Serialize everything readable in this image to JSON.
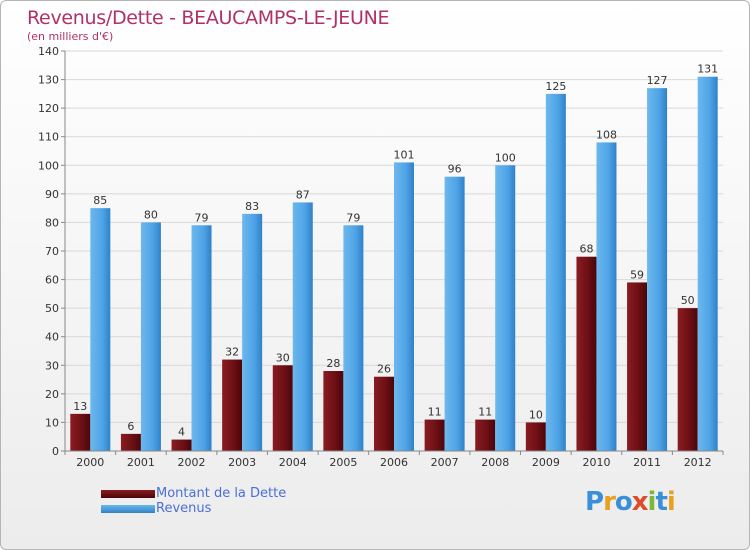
{
  "header": {
    "title": "Revenus/Dette - BEAUCAMPS-LE-JEUNE",
    "subtitle": "(en milliers d'€)"
  },
  "legend": {
    "items": [
      {
        "label": "Montant de la Dette",
        "color": "#6b0f14"
      },
      {
        "label": "Revenus",
        "color": "#4fa3e6"
      }
    ]
  },
  "logo": {
    "text": "Proxiti"
  },
  "chart_data": {
    "type": "bar",
    "title": "Revenus/Dette - BEAUCAMPS-LE-JEUNE",
    "subtitle": "(en milliers d'€)",
    "xlabel": "",
    "ylabel": "",
    "ylim": [
      0,
      140
    ],
    "yticks": [
      0,
      10,
      20,
      30,
      40,
      50,
      60,
      70,
      80,
      90,
      100,
      110,
      120,
      130,
      140
    ],
    "grid": true,
    "legend_position": "bottom-left",
    "categories": [
      "2000",
      "2001",
      "2002",
      "2003",
      "2004",
      "2005",
      "2006",
      "2007",
      "2008",
      "2009",
      "2010",
      "2011",
      "2012"
    ],
    "series": [
      {
        "name": "Montant de la Dette",
        "color": "#6b0f14",
        "values": [
          13,
          6,
          4,
          32,
          30,
          28,
          26,
          11,
          11,
          10,
          68,
          59,
          50
        ]
      },
      {
        "name": "Revenus",
        "color": "#4fa3e6",
        "values": [
          85,
          80,
          79,
          83,
          87,
          79,
          101,
          96,
          100,
          125,
          108,
          127,
          131
        ]
      }
    ]
  }
}
